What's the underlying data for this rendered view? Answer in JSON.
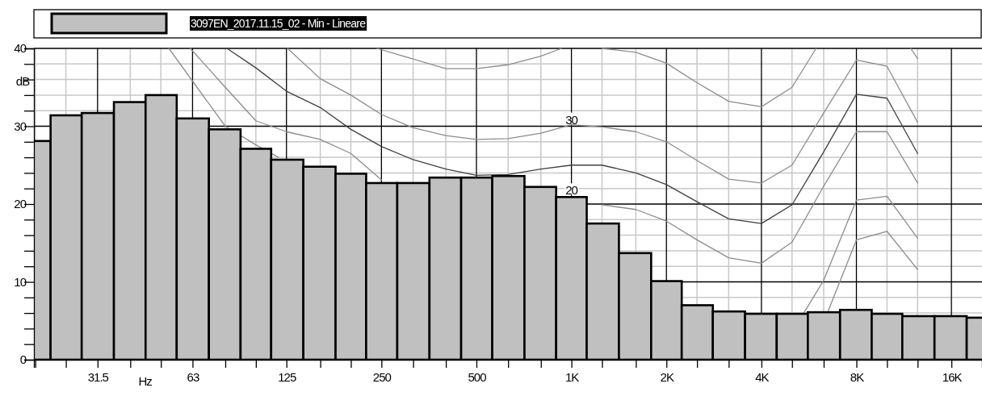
{
  "chart_data": {
    "type": "bar",
    "xlabel": "Hz",
    "ylabel": "dB",
    "xlim": [
      19.8,
      20000
    ],
    "ylim": [
      0,
      40
    ],
    "log": "x",
    "grid": true,
    "legend": "top",
    "marker": "none",
    "xticks": [
      {
        "value": 20,
        "label": null
      },
      {
        "value": 25,
        "label": null
      },
      31.5,
      {
        "value": 40,
        "label": null
      },
      {
        "value": 50,
        "label": null
      },
      63,
      {
        "value": 80,
        "label": null
      },
      {
        "value": 100,
        "label": null
      },
      125,
      {
        "value": 160,
        "label": null
      },
      {
        "value": 200,
        "label": null
      },
      250,
      {
        "value": 315,
        "label": null
      },
      {
        "value": 400,
        "label": null
      },
      500,
      {
        "value": 630,
        "label": null
      },
      {
        "value": 800,
        "label": null
      },
      {
        "value": 1000,
        "label": "1K"
      },
      {
        "value": 1250,
        "label": null
      },
      {
        "value": 1600,
        "label": null
      },
      {
        "value": 2000,
        "label": "2K"
      },
      {
        "value": 2500,
        "label": null
      },
      {
        "value": 3150,
        "label": null
      },
      {
        "value": 4000,
        "label": "4K"
      },
      {
        "value": 5000,
        "label": null
      },
      {
        "value": 6300,
        "label": null
      },
      {
        "value": 8000,
        "label": "8K"
      },
      {
        "value": 10000,
        "label": null
      },
      {
        "value": 12500,
        "label": null
      },
      {
        "value": 16000,
        "label": "16K"
      }
    ],
    "yticks": [
      0,
      {
        "value": 2,
        "label": null
      },
      {
        "value": 4,
        "label": null
      },
      {
        "value": 6,
        "label": null
      },
      {
        "value": 8,
        "label": null
      },
      10,
      {
        "value": 12,
        "label": null
      },
      {
        "value": 14,
        "label": null
      },
      {
        "value": 16,
        "label": null
      },
      {
        "value": 18,
        "label": null
      },
      20,
      {
        "value": 22,
        "label": null
      },
      {
        "value": 24,
        "label": null
      },
      {
        "value": 26,
        "label": null
      },
      {
        "value": 28,
        "label": null
      },
      30,
      {
        "value": 32,
        "label": null
      },
      {
        "value": 34,
        "label": null
      },
      {
        "value": 36,
        "label": null
      },
      {
        "value": 38,
        "label": null
      },
      40
    ],
    "annotations": [
      {
        "text": "30",
        "x": 1000,
        "y": 30.2
      },
      {
        "text": "20",
        "x": 1000,
        "y": 21.1
      }
    ],
    "series": [
      {
        "type": "line",
        "color": "#8c8c8c",
        "x": [
          242,
          400,
          500,
          630,
          800,
          930,
          1000,
          1250,
          1600,
          2000,
          2500,
          3150,
          4000,
          5000,
          5960,
          8000,
          11890,
          12500
        ],
        "values": [
          40,
          37.4,
          37.4,
          37.9,
          39.0,
          40,
          null,
          40,
          39.5,
          38.1,
          35.6,
          33.2,
          32.5,
          35.0,
          40,
          null,
          40,
          38.7
        ]
      },
      {
        "type": "line",
        "color": "#8c8c8c",
        "x": [
          126,
          160,
          200,
          250,
          315,
          400,
          500,
          630,
          800,
          1000,
          1250,
          1600,
          2000,
          2500,
          3150,
          4000,
          5000,
          6300,
          8000,
          10000,
          12500
        ],
        "values": [
          40,
          36.1,
          34.0,
          31.5,
          29.8,
          28.8,
          28.3,
          28.4,
          29.1,
          30.2,
          29.9,
          29.3,
          28.0,
          25.6,
          23.2,
          22.7,
          25.0,
          31.7,
          38.5,
          37.7,
          30.5
        ]
      },
      {
        "type": "line",
        "color": "#404040",
        "x": [
          81,
          100,
          125,
          160,
          200,
          250,
          315,
          400,
          500,
          630,
          800,
          1000,
          1250,
          1600,
          2000,
          2500,
          3150,
          4000,
          5000,
          6300,
          8000,
          10000,
          12500
        ],
        "values": [
          40,
          37.5,
          34.5,
          32.4,
          29.6,
          27.4,
          25.7,
          24.5,
          23.7,
          23.8,
          24.5,
          25.0,
          25.0,
          24.0,
          22.5,
          20.3,
          18.1,
          17.5,
          19.9,
          26.7,
          34.1,
          33.6,
          26.5
        ]
      },
      {
        "type": "line",
        "color": "#8c8c8c",
        "x": [
          62,
          80,
          100,
          125,
          160,
          200,
          250,
          1000,
          1250,
          1600,
          2000,
          2500,
          3150,
          4000,
          5000,
          6300,
          8000,
          10000,
          12500
        ],
        "values": [
          40,
          35.0,
          30.7,
          29.3,
          28.3,
          26.5,
          23.1,
          null,
          19.9,
          19.3,
          17.8,
          15.4,
          13.1,
          12.4,
          15.1,
          22.3,
          29.3,
          29.3,
          22.7
        ]
      },
      {
        "type": "line",
        "color": "#8c8c8c",
        "x": [
          53,
          80,
          100,
          118,
          1000,
          5450,
          6300,
          8000,
          10000,
          12500
        ],
        "values": [
          40,
          30.0,
          27.6,
          26.0,
          null,
          6.0,
          10.2,
          20.5,
          21.0,
          15.6
        ]
      },
      {
        "type": "line",
        "color": "#8c8c8c",
        "x": [
          6500,
          8000,
          10000,
          12500
        ],
        "values": [
          6.2,
          15.4,
          16.5,
          11.6
        ]
      },
      {
        "name": "3097EN_2017.11.15_02 - Min - Lineare",
        "color": "#c0c0c0",
        "x": [
          20,
          25,
          31.5,
          40,
          50,
          63,
          80,
          100,
          125,
          160,
          200,
          250,
          315,
          400,
          500,
          630,
          800,
          1000,
          1250,
          1600,
          2000,
          2500,
          3150,
          4000,
          5000,
          6300,
          8000,
          10000,
          12500,
          16000,
          20000
        ],
        "values": [
          28.1,
          31.4,
          31.7,
          33.1,
          34.0,
          31.0,
          29.6,
          27.1,
          25.7,
          24.8,
          23.9,
          22.7,
          22.7,
          23.4,
          23.4,
          23.6,
          22.2,
          20.9,
          17.5,
          13.7,
          10.1,
          7.0,
          6.2,
          5.9,
          5.9,
          6.1,
          6.4,
          5.9,
          5.6,
          5.6,
          5.4
        ]
      }
    ]
  }
}
